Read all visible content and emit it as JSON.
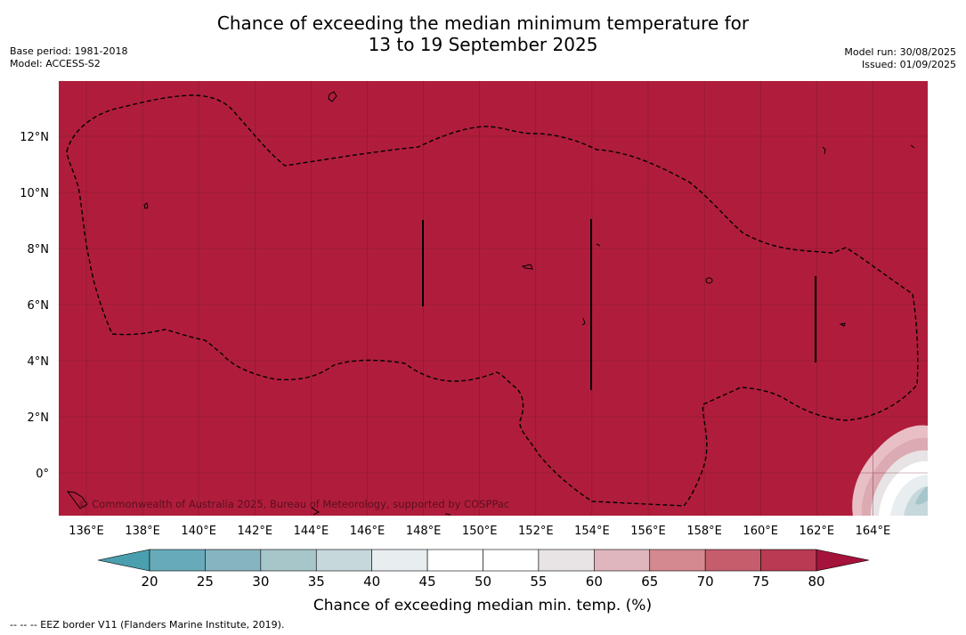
{
  "title": {
    "line1": "Chance of exceeding the median minimum temperature for",
    "line2": "13 to 19 September 2025"
  },
  "meta_left": {
    "base_period": "Base period: 1981-2018",
    "model": "Model: ACCESS-S2"
  },
  "meta_right": {
    "model_run": "Model run: 30/08/2025",
    "issued": "Issued: 01/09/2025"
  },
  "map": {
    "background_color": "#b01d3c",
    "gridlines": true,
    "lon_labels": [
      "136°E",
      "138°E",
      "140°E",
      "142°E",
      "144°E",
      "146°E",
      "148°E",
      "150°E",
      "152°E",
      "154°E",
      "156°E",
      "158°E",
      "160°E",
      "162°E",
      "164°E"
    ],
    "lat_labels": [
      "12°N",
      "10°N",
      "8°N",
      "6°N",
      "4°N",
      "2°N",
      "0°"
    ],
    "copyright": "© Commonwealth of Australia 2025, Bureau of Meteorology, supported by COSPPac"
  },
  "colorbar": {
    "label": "Chance of exceeding median min. temp. (%)",
    "ticks": [
      "20",
      "25",
      "30",
      "35",
      "40",
      "45",
      "50",
      "55",
      "60",
      "65",
      "70",
      "75",
      "80"
    ],
    "colors": [
      "#67abbb",
      "#86b5c1",
      "#a6c6ca",
      "#c6d8dc",
      "#e8edf0",
      "#ffffff",
      "#ffffff",
      "#e8e4e5",
      "#dfb6bd",
      "#d48990",
      "#c55d6c",
      "#b93a52"
    ],
    "under_color": "#4a9fae",
    "over_color": "#a5123a"
  },
  "footer": "-- -- -- EEZ border V11 (Flanders Marine Institute, 2019)."
}
